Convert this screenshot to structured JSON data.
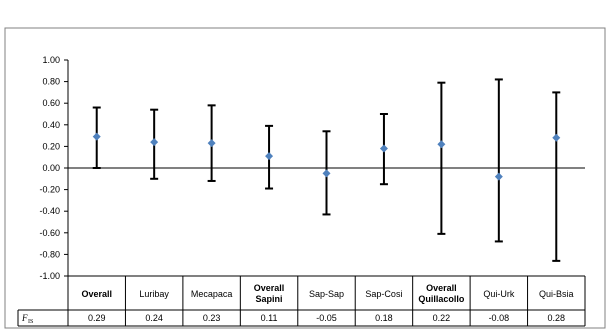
{
  "chart_data": {
    "type": "scatter",
    "categories": [
      "Overall",
      "Luribay",
      "Mecapaca",
      "Overall Sapini",
      "Sap-Sap",
      "Sap-Cosi",
      "Overall Quillacollo",
      "Qui-Urk",
      "Qui-Bsia"
    ],
    "bold_categories": [
      "Overall",
      "Overall Sapini",
      "Overall Quillacollo"
    ],
    "series": [
      {
        "values": [
          0.29,
          0.24,
          0.23,
          0.11,
          -0.05,
          0.18,
          0.22,
          -0.08,
          0.28
        ],
        "upper": [
          0.56,
          0.54,
          0.58,
          0.39,
          0.34,
          0.5,
          0.79,
          0.82,
          0.7
        ],
        "lower": [
          0.0,
          -0.1,
          -0.12,
          -0.19,
          -0.43,
          -0.15,
          -0.61,
          -0.68,
          -0.86
        ],
        "color": "#4f81bd"
      }
    ],
    "table_row_label": "F",
    "table_row_subscript": "IS",
    "table_values": [
      "0.29",
      "0.24",
      "0.23",
      "0.11",
      "-0.05",
      "0.18",
      "0.22",
      "-0.08",
      "0.28"
    ],
    "ylim": [
      -1.0,
      1.0
    ],
    "yticks": [
      "1.00",
      "0.80",
      "0.60",
      "0.40",
      "0.20",
      "0.00",
      "-0.20",
      "-0.40",
      "-0.60",
      "-0.80",
      "-1.00"
    ],
    "grid": false,
    "title": "",
    "xlabel": "",
    "ylabel": ""
  }
}
